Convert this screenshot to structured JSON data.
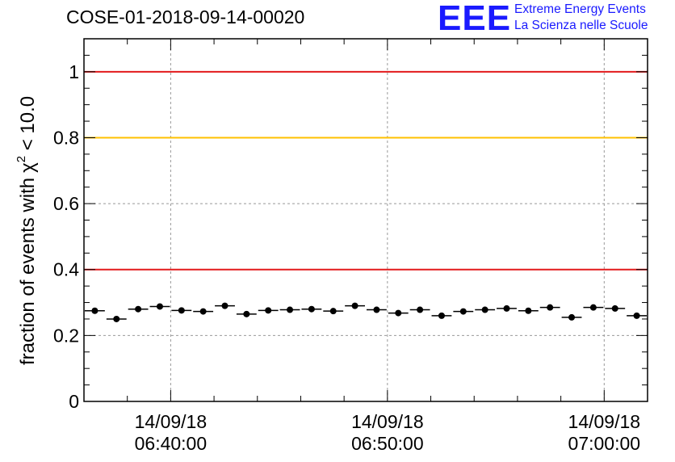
{
  "title": "COSE-01-2018-09-14-00020",
  "logo": {
    "mark": "EEE",
    "line1": "Extreme Energy Events",
    "line2": "La Scienza nelle Scuole",
    "color": "#1a1aff"
  },
  "colors": {
    "red_line": "#e31a1c",
    "yellow_line": "#ffc000",
    "marker": "#000000",
    "grid": "#999999"
  },
  "chart_data": {
    "type": "scatter",
    "title": "COSE-01-2018-09-14-00020",
    "xlabel": "",
    "ylabel": "fraction of events with",
    "ylabel_symbol": "χ",
    "ylabel_superscript": "2",
    "ylabel_suffix": " < 10.0",
    "ylim": [
      0,
      1.1
    ],
    "y_ticks": [
      "0",
      "0.2",
      "0.4",
      "0.6",
      "0.8",
      "1"
    ],
    "y_tick_values": [
      0,
      0.2,
      0.4,
      0.6,
      0.8,
      1.0
    ],
    "x_range_minutes": [
      "06:36:00",
      "07:02:00"
    ],
    "x_ticks": [
      {
        "time": "06:40:00",
        "date": "14/09/18"
      },
      {
        "time": "06:50:00",
        "date": "14/09/18"
      },
      {
        "time": "07:00:00",
        "date": "14/09/18"
      }
    ],
    "grid": true,
    "threshold_lines": [
      {
        "y": 1.0,
        "color": "red"
      },
      {
        "y": 0.8,
        "color": "yellow"
      },
      {
        "y": 0.4,
        "color": "red"
      }
    ],
    "bin_width_minutes": 1,
    "x": [
      "06:36:30",
      "06:37:30",
      "06:38:30",
      "06:39:30",
      "06:40:30",
      "06:41:30",
      "06:42:30",
      "06:43:30",
      "06:44:30",
      "06:45:30",
      "06:46:30",
      "06:47:30",
      "06:48:30",
      "06:49:30",
      "06:50:30",
      "06:51:30",
      "06:52:30",
      "06:53:30",
      "06:54:30",
      "06:55:30",
      "06:56:30",
      "06:57:30",
      "06:58:30",
      "06:59:30",
      "07:00:30",
      "07:01:30"
    ],
    "values": [
      0.275,
      0.25,
      0.28,
      0.288,
      0.276,
      0.273,
      0.29,
      0.265,
      0.276,
      0.278,
      0.28,
      0.274,
      0.29,
      0.278,
      0.268,
      0.278,
      0.26,
      0.273,
      0.278,
      0.282,
      0.275,
      0.285,
      0.255,
      0.285,
      0.282,
      0.26
    ]
  }
}
